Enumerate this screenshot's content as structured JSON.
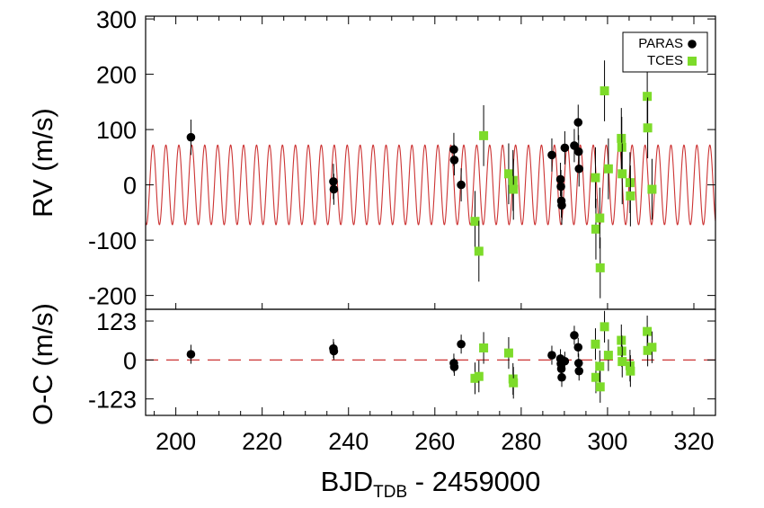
{
  "chart_data": [
    {
      "type": "scatter",
      "panel": "rv",
      "ylabel": "RV (m/s)",
      "xlim": [
        193,
        325
      ],
      "ylim": [
        -225,
        305
      ],
      "yticks": [
        300,
        200,
        100,
        0,
        -100,
        -200
      ],
      "legend": {
        "placement": "top-right",
        "entries": [
          "PARAS",
          "TCES"
        ]
      },
      "model": {
        "type": "sinusoid",
        "amplitude": 72,
        "period": 3.0,
        "phase": 2.2,
        "color": "#cc3333"
      },
      "series": [
        {
          "name": "PARAS",
          "marker": "circle",
          "color": "#000000",
          "points": [
            {
              "x": 203.5,
              "y": 86,
              "err": 32
            },
            {
              "x": 236.5,
              "y": 6,
              "err": 32
            },
            {
              "x": 236.6,
              "y": -8,
              "err": 28
            },
            {
              "x": 264.4,
              "y": 64,
              "err": 30
            },
            {
              "x": 264.5,
              "y": 45,
              "err": 28
            },
            {
              "x": 266.1,
              "y": 0,
              "err": 30
            },
            {
              "x": 287.1,
              "y": 54,
              "err": 30
            },
            {
              "x": 289.1,
              "y": 10,
              "err": 30
            },
            {
              "x": 289.2,
              "y": -3,
              "err": 30
            },
            {
              "x": 289.3,
              "y": -29,
              "err": 30
            },
            {
              "x": 289.4,
              "y": -37,
              "err": 35
            },
            {
              "x": 290.1,
              "y": 67,
              "err": 30
            },
            {
              "x": 292.3,
              "y": 71,
              "err": 30
            },
            {
              "x": 293.2,
              "y": 113,
              "err": 32
            },
            {
              "x": 293.3,
              "y": 60,
              "err": 30
            },
            {
              "x": 293.4,
              "y": 29,
              "err": 32
            }
          ]
        },
        {
          "name": "TCES",
          "marker": "square",
          "color": "#7ddb2a",
          "points": [
            {
              "x": 269.3,
              "y": -66,
              "err": 55
            },
            {
              "x": 270.2,
              "y": -120,
              "err": 55
            },
            {
              "x": 271.3,
              "y": 89,
              "err": 55
            },
            {
              "x": 277.1,
              "y": 20,
              "err": 55
            },
            {
              "x": 278.1,
              "y": 8,
              "err": 55
            },
            {
              "x": 278.2,
              "y": -8,
              "err": 55
            },
            {
              "x": 297.2,
              "y": 13,
              "err": 55
            },
            {
              "x": 297.3,
              "y": -80,
              "err": 55
            },
            {
              "x": 298.2,
              "y": -60,
              "err": 55
            },
            {
              "x": 298.3,
              "y": -150,
              "err": 55
            },
            {
              "x": 299.3,
              "y": 170,
              "err": 55
            },
            {
              "x": 300.2,
              "y": 29,
              "err": 55
            },
            {
              "x": 303.2,
              "y": 84,
              "err": 55
            },
            {
              "x": 303.3,
              "y": 68,
              "err": 55
            },
            {
              "x": 303.4,
              "y": 20,
              "err": 55
            },
            {
              "x": 305.2,
              "y": 4,
              "err": 55
            },
            {
              "x": 305.3,
              "y": -20,
              "err": 55
            },
            {
              "x": 309.2,
              "y": 160,
              "err": 55
            },
            {
              "x": 309.3,
              "y": 103,
              "err": 55
            },
            {
              "x": 310.3,
              "y": -8,
              "err": 55
            }
          ]
        }
      ]
    },
    {
      "type": "scatter",
      "panel": "residuals",
      "ylabel": "O-C (m/s)",
      "xlabel": "BJD",
      "xlabel_sub": "TDB",
      "xlabel_suffix": " - 2459000",
      "xlim": [
        193,
        325
      ],
      "ylim": [
        -175,
        160
      ],
      "yticks": [
        123,
        0,
        -123
      ],
      "xticks": [
        200,
        220,
        240,
        260,
        280,
        300,
        320
      ],
      "zero_line": {
        "y": 0,
        "style": "dashed",
        "color": "#cc3333"
      },
      "series": [
        {
          "name": "PARAS",
          "marker": "circle",
          "color": "#000000",
          "points": [
            {
              "x": 203.5,
              "y": 18,
              "err": 30
            },
            {
              "x": 236.5,
              "y": 36,
              "err": 30
            },
            {
              "x": 236.6,
              "y": 28,
              "err": 28
            },
            {
              "x": 264.4,
              "y": -10,
              "err": 30
            },
            {
              "x": 264.5,
              "y": -22,
              "err": 28
            },
            {
              "x": 266.1,
              "y": 50,
              "err": 30
            },
            {
              "x": 287.1,
              "y": 15,
              "err": 30
            },
            {
              "x": 289.1,
              "y": 4,
              "err": 30
            },
            {
              "x": 289.2,
              "y": -12,
              "err": 30
            },
            {
              "x": 289.3,
              "y": -28,
              "err": 30
            },
            {
              "x": 289.4,
              "y": -55,
              "err": 30
            },
            {
              "x": 290.1,
              "y": -4,
              "err": 30
            },
            {
              "x": 292.3,
              "y": 78,
              "err": 30
            },
            {
              "x": 293.2,
              "y": 40,
              "err": 30
            },
            {
              "x": 293.3,
              "y": -10,
              "err": 30
            },
            {
              "x": 293.4,
              "y": -35,
              "err": 30
            }
          ]
        },
        {
          "name": "TCES",
          "marker": "square",
          "color": "#7ddb2a",
          "points": [
            {
              "x": 269.3,
              "y": -58,
              "err": 50
            },
            {
              "x": 270.2,
              "y": -52,
              "err": 50
            },
            {
              "x": 271.3,
              "y": 38,
              "err": 50
            },
            {
              "x": 277.1,
              "y": 22,
              "err": 50
            },
            {
              "x": 278.1,
              "y": -60,
              "err": 50
            },
            {
              "x": 278.2,
              "y": -72,
              "err": 50
            },
            {
              "x": 297.2,
              "y": 50,
              "err": 50
            },
            {
              "x": 297.3,
              "y": -55,
              "err": 50
            },
            {
              "x": 298.2,
              "y": -20,
              "err": 50
            },
            {
              "x": 298.3,
              "y": -85,
              "err": 50
            },
            {
              "x": 299.3,
              "y": 105,
              "err": 50
            },
            {
              "x": 300.2,
              "y": 15,
              "err": 50
            },
            {
              "x": 303.2,
              "y": 62,
              "err": 50
            },
            {
              "x": 303.3,
              "y": 28,
              "err": 50
            },
            {
              "x": 303.4,
              "y": -5,
              "err": 50
            },
            {
              "x": 305.2,
              "y": -18,
              "err": 50
            },
            {
              "x": 305.3,
              "y": -35,
              "err": 50
            },
            {
              "x": 309.2,
              "y": 90,
              "err": 50
            },
            {
              "x": 309.3,
              "y": 30,
              "err": 50
            },
            {
              "x": 310.3,
              "y": 40,
              "err": 50
            }
          ]
        }
      ]
    }
  ]
}
